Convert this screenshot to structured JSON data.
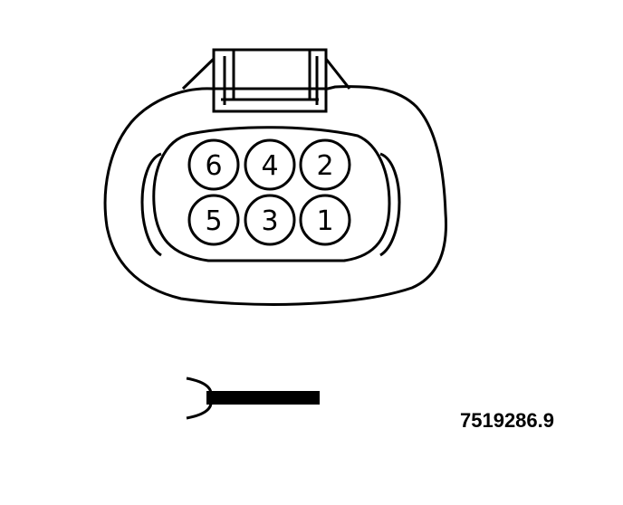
{
  "connector": {
    "pins": [
      {
        "id": "pin-6",
        "label": "6"
      },
      {
        "id": "pin-4",
        "label": "4"
      },
      {
        "id": "pin-2",
        "label": "2"
      },
      {
        "id": "pin-5",
        "label": "5"
      },
      {
        "id": "pin-3",
        "label": "3"
      },
      {
        "id": "pin-1",
        "label": "1"
      }
    ]
  },
  "reference_number": "7519286.9",
  "colors": {
    "line": "#000000",
    "background": "#ffffff"
  }
}
